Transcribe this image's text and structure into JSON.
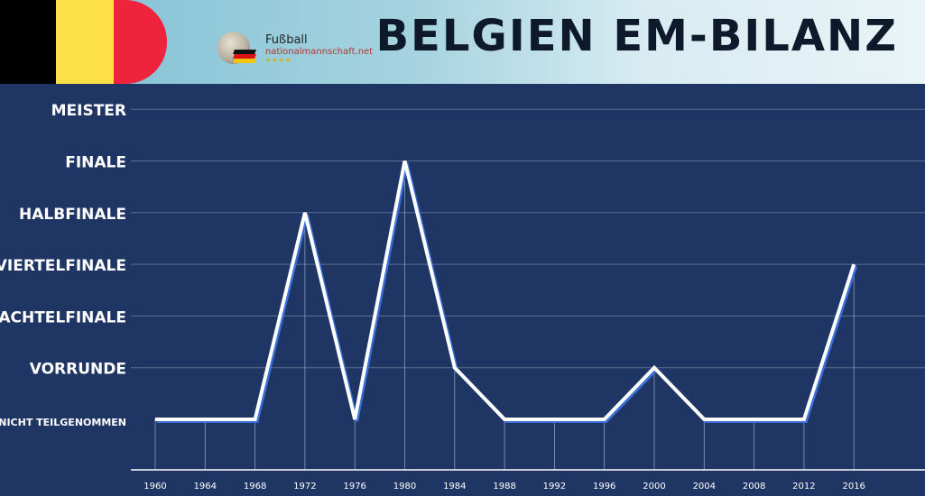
{
  "header": {
    "title": "BELGIEN EM-BILANZ",
    "flag_colors": [
      "#000000",
      "#fde047",
      "#ef233c"
    ],
    "logo_title": "Fußball",
    "logo_url": "nationalmannschaft.net",
    "logo_stars": "★★★★"
  },
  "chart_data": {
    "type": "line",
    "categories": [
      "Nicht teilgenommen",
      "Vorrunde",
      "Achtelfinale",
      "Viertelfinale",
      "Halbfinale",
      "Finale",
      "Meister"
    ],
    "category_labels": [
      "NICHT TEILGENOMMEN",
      "VORRUNDE",
      "ACHTELFINALE",
      "VIERTELFINALE",
      "HALBFINALE",
      "FINALE",
      "MEISTER"
    ],
    "x": [
      "1960",
      "1964",
      "1968",
      "1972",
      "1976",
      "1980",
      "1984",
      "1988",
      "1992",
      "1996",
      "2000",
      "2004",
      "2008",
      "2012",
      "2016"
    ],
    "series": [
      {
        "values": [
          0,
          0,
          0,
          4,
          0,
          5,
          1,
          0,
          0,
          0,
          1,
          0,
          0,
          0,
          3
        ]
      }
    ],
    "ylim": [
      0,
      6
    ],
    "grid": true,
    "line_color": "#ffffff",
    "shadow_color": "#3a6fd8",
    "background": "#1f3665"
  }
}
